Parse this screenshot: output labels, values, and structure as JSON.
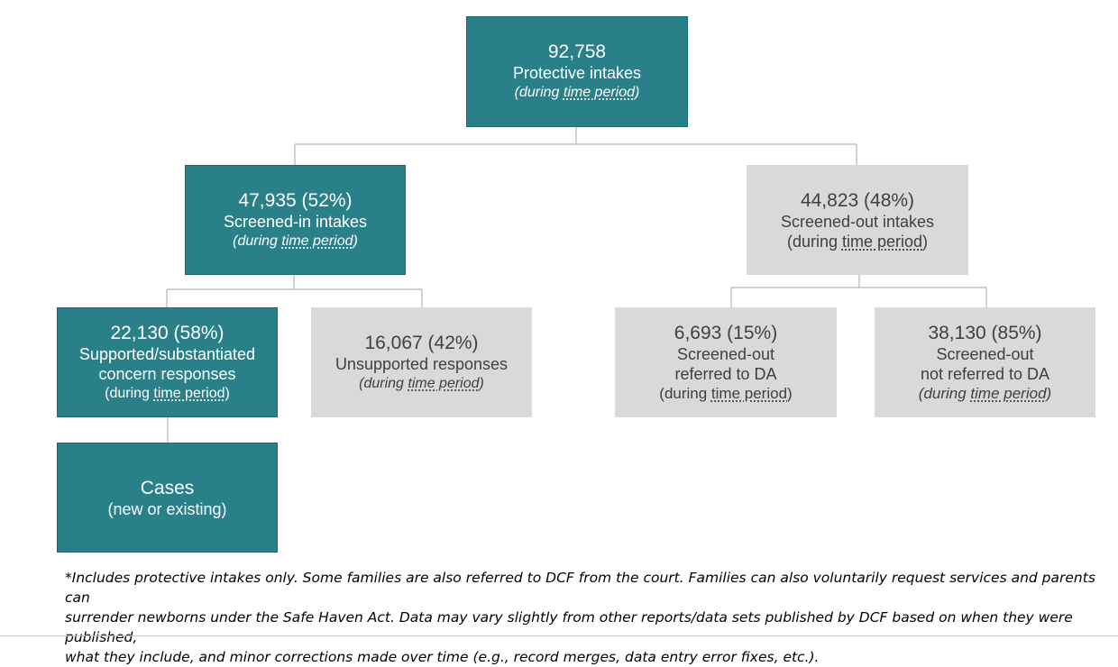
{
  "nodes": {
    "protective_intakes": {
      "count": "92,758",
      "label": "Protective intakes",
      "period_open": "(during ",
      "period_term": "time period",
      "period_close": ")"
    },
    "screened_in": {
      "count": "47,935 (52%)",
      "label": "Screened-in intakes",
      "period_open": "(during ",
      "period_term": "time period",
      "period_close": ")"
    },
    "screened_out": {
      "count": "44,823 (48%)",
      "label": "Screened-out intakes",
      "period_open": "(during ",
      "period_term": "time period",
      "period_close": ")"
    },
    "supported": {
      "count": "22,130 (58%)",
      "label_line1": "Supported/substantiated",
      "label_line2": "concern responses",
      "period_open": "(during ",
      "period_term": "time period",
      "period_close": ")"
    },
    "unsupported": {
      "count": "16,067 (42%)",
      "label": "Unsupported responses",
      "period_open": "(during ",
      "period_term": "time period",
      "period_close": ")"
    },
    "referred_da": {
      "count": "6,693 (15%)",
      "label_line1": "Screened-out",
      "label_line2": "referred to DA",
      "period_open": "(during ",
      "period_term": "time period",
      "period_close": ")"
    },
    "not_referred_da": {
      "count": "38,130 (85%)",
      "label_line1": "Screened-out",
      "label_line2": "not referred to DA",
      "period_open": "(during ",
      "period_term": "time period",
      "period_close": ")"
    },
    "cases": {
      "label": "Cases",
      "sublabel": "(new or existing)"
    }
  },
  "footnote": {
    "line1": "*Includes protective intakes only.  Some families are also referred to DCF from the court.  Families can also voluntarily request services and parents can",
    "line2": "surrender newborns under the Safe Haven Act. Data may vary slightly from other reports/data sets published by DCF based on when they were published,",
    "line3": "what they include, and minor corrections made over time (e.g., record merges, data entry error fixes, etc.)."
  },
  "colors": {
    "teal": "#2a8089",
    "grey": "#d9d9d9",
    "connector": "#b4b4b4"
  }
}
